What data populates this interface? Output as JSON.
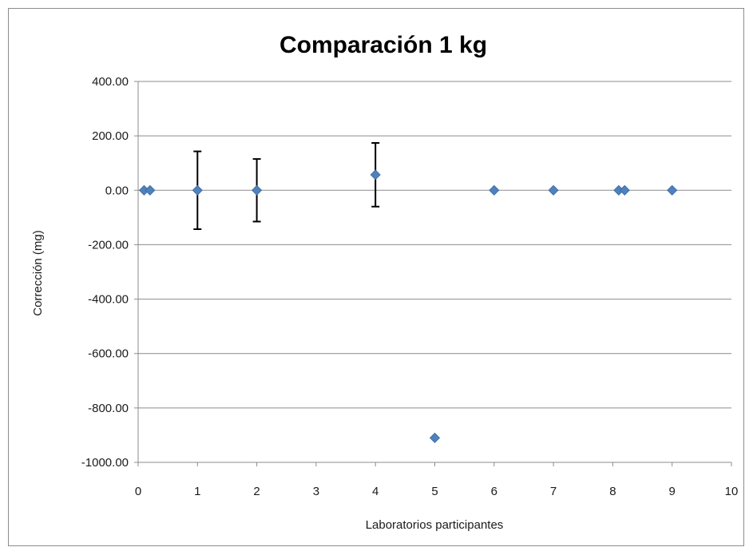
{
  "chart_data": {
    "type": "scatter",
    "title": "Comparación 1 kg",
    "xlabel": "Laboratorios participantes",
    "ylabel": "Corrección (mg)",
    "xlim": [
      0,
      10
    ],
    "ylim": [
      -1000,
      400
    ],
    "x_ticks": [
      0,
      1,
      2,
      3,
      4,
      5,
      6,
      7,
      8,
      9,
      10
    ],
    "x_tick_labels": [
      "0",
      "1",
      "2",
      "3",
      "4",
      "5",
      "6",
      "7",
      "8",
      "9",
      "10"
    ],
    "y_ticks": [
      400,
      200,
      0,
      -200,
      -400,
      -600,
      -800,
      -1000
    ],
    "y_tick_labels": [
      "400.00",
      "200.00",
      "0.00",
      "-200.00",
      "-400.00",
      "-600.00",
      "-800.00",
      "-1000.00"
    ],
    "grid": "horizontal",
    "legend": "none",
    "marker": "diamond",
    "marker_color": "#4f81bd",
    "points": [
      {
        "x": 0.1,
        "y": 0
      },
      {
        "x": 0.2,
        "y": 0
      },
      {
        "x": 1,
        "y": 0,
        "err": 143
      },
      {
        "x": 2,
        "y": 0,
        "err": 115
      },
      {
        "x": 4,
        "y": 57,
        "err": 117
      },
      {
        "x": 5,
        "y": -910
      },
      {
        "x": 6,
        "y": 0
      },
      {
        "x": 7,
        "y": 0
      },
      {
        "x": 8.1,
        "y": 0
      },
      {
        "x": 8.2,
        "y": 0
      },
      {
        "x": 9,
        "y": 0
      }
    ]
  }
}
